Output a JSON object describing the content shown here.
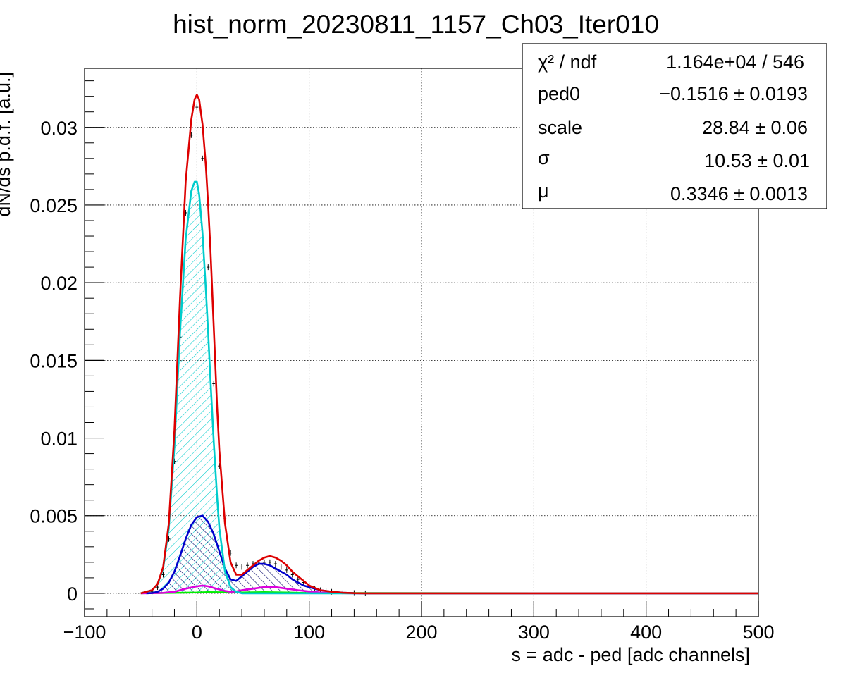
{
  "chart_data": {
    "type": "line",
    "title": "hist_norm_20230811_1157_Ch03_Iter010",
    "xlabel": "s = adc - ped [adc channels]",
    "ylabel": "dN/ds p.d.f. [a.u.]",
    "xlim": [
      -100,
      500
    ],
    "ylim": [
      -0.0015,
      0.0338
    ],
    "x_ticks": [
      -100,
      0,
      100,
      200,
      300,
      400,
      500
    ],
    "x_tick_labels": [
      "−100",
      "0",
      "100",
      "200",
      "300",
      "400",
      "500"
    ],
    "y_ticks": [
      0,
      0.005,
      0.01,
      0.015,
      0.02,
      0.025,
      0.03
    ],
    "y_tick_labels": [
      "0",
      "0.005",
      "0.01",
      "0.015",
      "0.02",
      "0.025",
      "0.03"
    ],
    "grid": true,
    "stats": [
      {
        "label": "χ² / ndf",
        "value": "1.164e+04 / 546"
      },
      {
        "label": "ped0",
        "value": "−0.1516 ± 0.0193"
      },
      {
        "label": "scale",
        "value": "28.84 ± 0.06"
      },
      {
        "label": "σ",
        "value": "10.53 ± 0.01"
      },
      {
        "label": "μ",
        "value": "0.3346 ± 0.0013"
      }
    ],
    "series": [
      {
        "key": "data",
        "style": "points",
        "color": "#000000",
        "x": [
          -40,
          -35,
          -30,
          -25,
          -20,
          -15,
          -10,
          -5,
          0,
          5,
          10,
          15,
          20,
          25,
          30,
          35,
          40,
          45,
          50,
          55,
          60,
          65,
          70,
          75,
          80,
          85,
          90,
          95,
          100,
          105,
          110,
          115,
          120,
          130,
          140,
          150
        ],
        "y": [
          0.0001,
          0.0004,
          0.0012,
          0.0035,
          0.0085,
          0.0165,
          0.0245,
          0.0295,
          0.0313,
          0.028,
          0.021,
          0.0135,
          0.0082,
          0.0048,
          0.0026,
          0.0018,
          0.0017,
          0.0018,
          0.0019,
          0.002,
          0.002,
          0.002,
          0.0019,
          0.0017,
          0.0015,
          0.0012,
          0.0009,
          0.0007,
          0.0005,
          0.0003,
          0.0002,
          0.00015,
          0.0001,
          5e-05,
          2e-05,
          0
        ]
      },
      {
        "key": "total",
        "style": "line",
        "color": "#dd0000",
        "x": [
          -50,
          -40,
          -35,
          -30,
          -25,
          -20,
          -15,
          -10,
          -5,
          -2,
          0,
          2,
          5,
          8,
          10,
          12,
          15,
          18,
          20,
          25,
          30,
          35,
          40,
          45,
          50,
          55,
          60,
          65,
          70,
          75,
          80,
          85,
          90,
          95,
          100,
          110,
          120,
          130,
          140,
          150,
          160,
          180,
          500
        ],
        "y": [
          0,
          0.0002,
          0.0006,
          0.0017,
          0.0045,
          0.0105,
          0.019,
          0.0265,
          0.0305,
          0.0318,
          0.0321,
          0.0318,
          0.0302,
          0.0275,
          0.025,
          0.0222,
          0.0172,
          0.012,
          0.0092,
          0.0045,
          0.002,
          0.0012,
          0.0012,
          0.0015,
          0.0018,
          0.0021,
          0.0023,
          0.0024,
          0.0023,
          0.0021,
          0.0018,
          0.0014,
          0.0011,
          0.0008,
          0.0005,
          0.0002,
          0.0001,
          4e-05,
          1e-05,
          0,
          0,
          0,
          0
        ]
      },
      {
        "key": "pedestal",
        "style": "filled",
        "color": "#00cccc",
        "x": [
          -50,
          -40,
          -35,
          -30,
          -25,
          -20,
          -15,
          -10,
          -5,
          -2,
          0,
          2,
          5,
          8,
          10,
          12,
          15,
          18,
          20,
          25,
          30,
          35,
          40,
          50,
          500
        ],
        "y": [
          0,
          0.0002,
          0.0006,
          0.0016,
          0.0042,
          0.0095,
          0.0168,
          0.0228,
          0.0259,
          0.0265,
          0.0265,
          0.0257,
          0.0232,
          0.0195,
          0.0168,
          0.0138,
          0.0098,
          0.0062,
          0.0042,
          0.0014,
          0.0004,
          0.0001,
          0,
          0,
          0
        ]
      },
      {
        "key": "one_pe",
        "style": "filled",
        "color": "#0000cc",
        "x": [
          -45,
          -40,
          -35,
          -30,
          -25,
          -20,
          -15,
          -10,
          -5,
          0,
          5,
          10,
          15,
          20,
          25,
          30,
          35,
          40,
          45,
          50,
          55,
          60,
          65,
          70,
          75,
          80,
          85,
          90,
          95,
          100,
          110,
          120,
          130,
          140,
          150,
          180,
          500
        ],
        "y": [
          0,
          2e-05,
          0.0001,
          0.0003,
          0.0007,
          0.0014,
          0.0024,
          0.0035,
          0.0044,
          0.0049,
          0.005,
          0.0046,
          0.0038,
          0.0027,
          0.0016,
          0.0009,
          0.0008,
          0.0011,
          0.0014,
          0.0017,
          0.0019,
          0.0019,
          0.0018,
          0.0016,
          0.0014,
          0.0012,
          0.0009,
          0.0007,
          0.0005,
          0.0004,
          0.0002,
          0.0001,
          4e-05,
          1e-05,
          0,
          0,
          0
        ]
      },
      {
        "key": "two_pe",
        "style": "line",
        "color": "#dd00dd",
        "x": [
          -50,
          -30,
          -20,
          -10,
          0,
          5,
          10,
          15,
          20,
          25,
          30,
          35,
          40,
          50,
          60,
          65,
          70,
          75,
          80,
          90,
          100,
          110,
          120,
          140,
          500
        ],
        "y": [
          0,
          3e-05,
          0.0001,
          0.0003,
          0.00045,
          0.0005,
          0.00045,
          0.00035,
          0.00025,
          0.00015,
          0.0001,
          0.00012,
          0.0002,
          0.0003,
          0.0004,
          0.0004,
          0.0004,
          0.00035,
          0.0003,
          0.0002,
          0.00012,
          5e-05,
          2e-05,
          0,
          0
        ]
      },
      {
        "key": "baseline",
        "style": "line",
        "color": "#00ee00",
        "x": [
          -50,
          0,
          10,
          40,
          60,
          80,
          100,
          500
        ],
        "y": [
          0,
          5e-05,
          8e-05,
          5e-05,
          8e-05,
          5e-05,
          2e-05,
          0
        ]
      }
    ]
  }
}
